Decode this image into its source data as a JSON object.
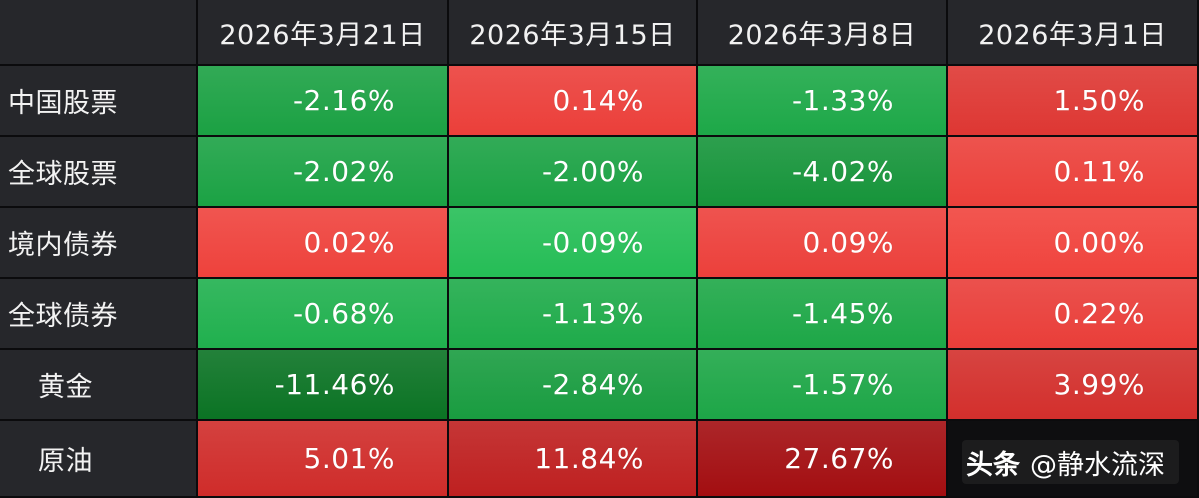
{
  "chart_data": {
    "type": "heatmap",
    "columns": [
      "2026年3月21日",
      "2026年3月15日",
      "2026年3月8日",
      "2026年3月1日"
    ],
    "rows": [
      {
        "label": "中国股票",
        "values": [
          -2.16,
          0.14,
          -1.33,
          1.5
        ],
        "display": [
          "-2.16%",
          "0.14%",
          "-1.33%",
          "1.50%"
        ]
      },
      {
        "label": "全球股票",
        "values": [
          -2.02,
          -2.0,
          -4.02,
          0.11
        ],
        "display": [
          "-2.02%",
          "-2.00%",
          "-4.02%",
          "0.11%"
        ]
      },
      {
        "label": "境内债券",
        "values": [
          0.02,
          -0.09,
          0.09,
          0.0
        ],
        "display": [
          "0.02%",
          "-0.09%",
          "0.09%",
          "0.00%"
        ]
      },
      {
        "label": "全球债券",
        "values": [
          -0.68,
          -1.13,
          -1.45,
          0.22
        ],
        "display": [
          "-0.68%",
          "-1.13%",
          "-1.45%",
          "0.22%"
        ]
      },
      {
        "label": "黄金",
        "values": [
          -11.46,
          -2.84,
          -1.57,
          3.99
        ],
        "display": [
          "-11.46%",
          "-2.84%",
          "-1.57%",
          "3.99%"
        ]
      },
      {
        "label": "原油",
        "values": [
          5.01,
          11.84,
          27.67,
          null
        ],
        "display": [
          "5.01%",
          "11.84%",
          "27.67%",
          ""
        ]
      }
    ],
    "colors": {
      "positive_light": "#f0433d",
      "positive_dark": "#9f0b0f",
      "negative_light": "#27c45b",
      "negative_dark": "#0b7324",
      "header_bg": "#26272b"
    }
  },
  "watermark": {
    "brand": "头条",
    "handle": "@静水流深"
  }
}
